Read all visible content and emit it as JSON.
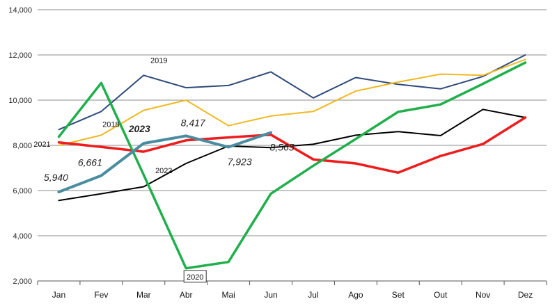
{
  "chart_data": {
    "type": "line",
    "categories": [
      "Jan",
      "Fev",
      "Mar",
      "Abr",
      "Mai",
      "Jun",
      "Jul",
      "Ago",
      "Set",
      "Out",
      "Nov",
      "Dez"
    ],
    "y_ticks": [
      "2,000",
      "4,000",
      "6,000",
      "8,000",
      "10,000",
      "12,000",
      "14,000"
    ],
    "ylim": [
      2000,
      14000
    ],
    "grid": "horizontal",
    "series": [
      {
        "name": "2019",
        "color": "#2E4A7A",
        "width": 2,
        "values": [
          8700,
          9500,
          11100,
          10550,
          10650,
          11250,
          10100,
          11000,
          10700,
          10500,
          11050,
          12000
        ],
        "label_index": 2
      },
      {
        "name": "2018",
        "color": "#F0B820",
        "width": 2,
        "values": [
          8000,
          8450,
          9550,
          10000,
          8870,
          9300,
          9500,
          10400,
          10800,
          11150,
          11100,
          11800
        ],
        "label_index": 1
      },
      {
        "name": "2022",
        "color": "#000000",
        "width": 2,
        "values": [
          5560,
          5860,
          6170,
          7200,
          7970,
          7900,
          8050,
          8450,
          8610,
          8430,
          9590,
          9230
        ],
        "label_index": 3
      },
      {
        "name": "2021",
        "color": "#EE1C1C",
        "width": 3.5,
        "values": [
          8130,
          7930,
          7720,
          8220,
          8350,
          8470,
          7380,
          7200,
          6790,
          7530,
          8060,
          9230
        ],
        "label_index": 0
      },
      {
        "name": "2020",
        "color": "#1FAF4B",
        "width": 3.5,
        "values": [
          8380,
          10760,
          6700,
          2560,
          2840,
          5860,
          7100,
          8280,
          9480,
          9810,
          10720,
          11660
        ],
        "label_index": 3
      },
      {
        "name": "2023",
        "color": "#4A8CA0",
        "width": 4,
        "values": [
          5940,
          6661,
          8090,
          8417,
          7923,
          8565,
          null,
          null,
          null,
          null,
          null,
          null
        ],
        "label_index": 2,
        "data_labels": [
          "5,940",
          "6,661",
          "",
          "8,417",
          "7,923",
          "8,565"
        ]
      }
    ]
  }
}
